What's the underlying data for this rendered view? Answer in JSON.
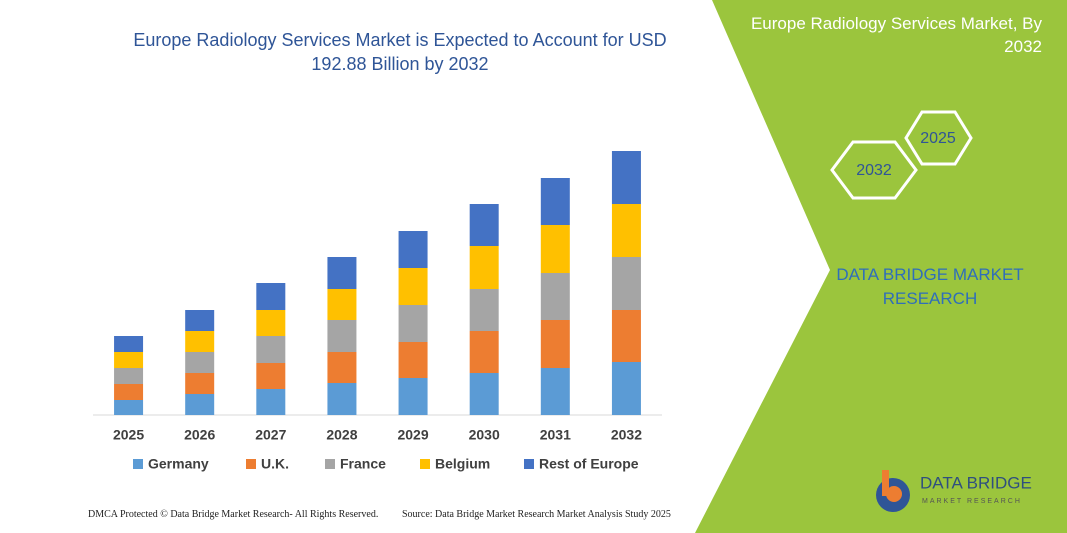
{
  "chart_data": {
    "type": "stacked-bar",
    "title": "Europe Radiology Services Market is Expected to Account for USD 192.88 Billion by 2032",
    "categories": [
      "2025",
      "2026",
      "2027",
      "2028",
      "2029",
      "2030",
      "2031",
      "2032"
    ],
    "series": [
      {
        "name": "Germany",
        "color": "#5b9bd5",
        "values": [
          15,
          21,
          26,
          32,
          37,
          42,
          47,
          53
        ]
      },
      {
        "name": "U.K.",
        "color": "#ed7d31",
        "values": [
          16,
          21,
          26,
          31,
          36,
          42,
          48,
          52
        ]
      },
      {
        "name": "France",
        "color": "#a5a5a5",
        "values": [
          16,
          21,
          27,
          32,
          37,
          42,
          47,
          53
        ]
      },
      {
        "name": "Belgium",
        "color": "#ffc000",
        "values": [
          16,
          21,
          26,
          31,
          37,
          43,
          48,
          53
        ]
      },
      {
        "name": "Rest of Europe",
        "color": "#4472c4",
        "values": [
          16,
          21,
          27,
          32,
          37,
          42,
          47,
          53
        ]
      }
    ]
  },
  "side_panel": {
    "title": "Europe Radiology Services Market, By 2032",
    "hexagons": [
      "2025",
      "2032"
    ],
    "brand": "DATA BRIDGE MARKET RESEARCH",
    "logo_name": "DATA BRIDGE",
    "logo_tagline": "MARKET RESEARCH"
  },
  "footer": {
    "left": "DMCA Protected © Data Bridge Market Research- All Rights Reserved.",
    "right": "Source: Data Bridge Market Research Market Analysis Study 2025"
  }
}
